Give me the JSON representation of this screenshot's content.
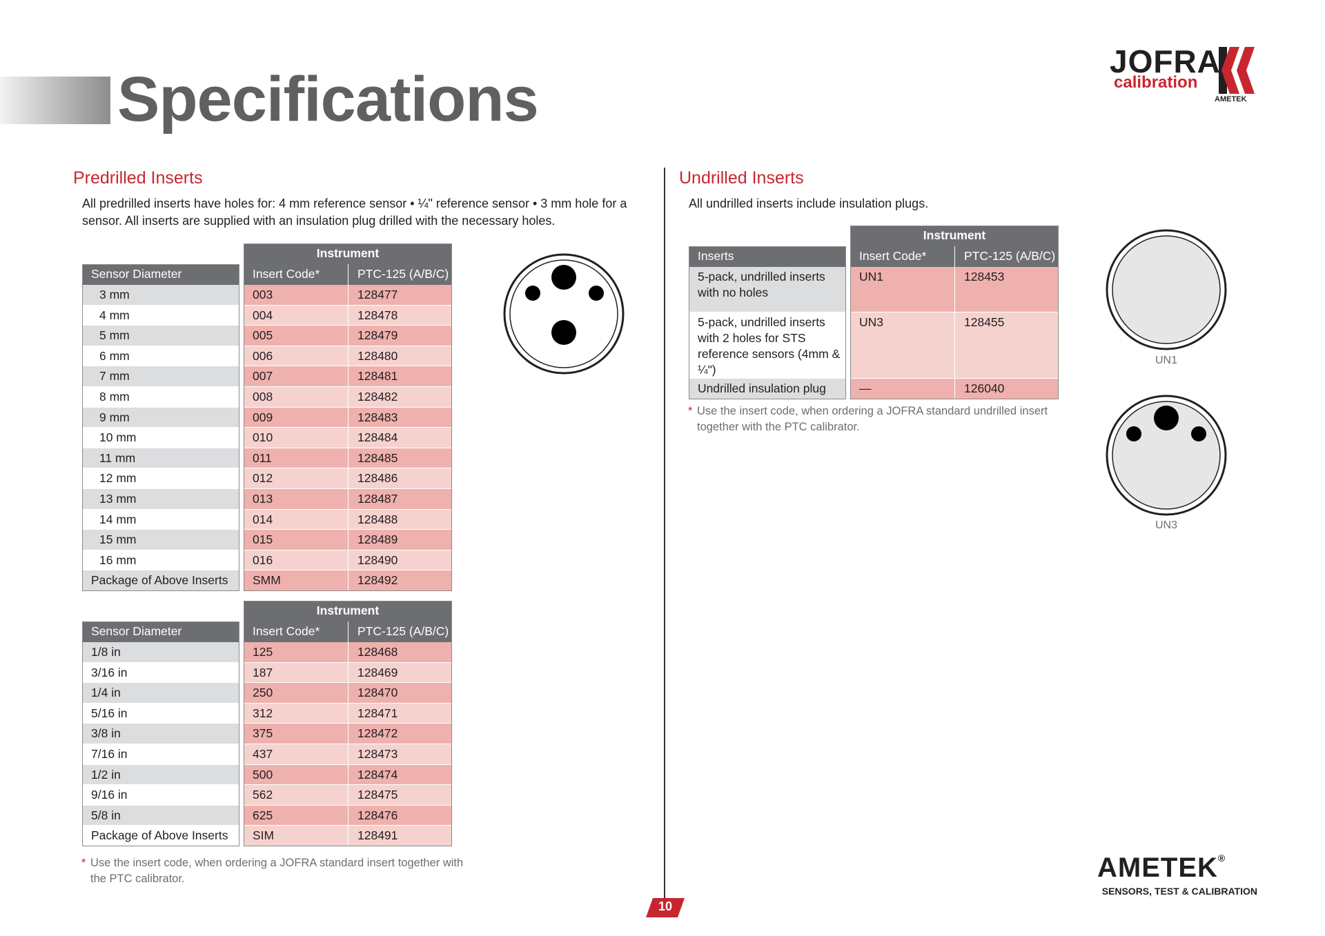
{
  "header": {
    "title": "Specifications",
    "logo": {
      "brand": "JOFRA",
      "sub": "calibration",
      "maker": "AMETEK"
    }
  },
  "predrilled": {
    "heading": "Predrilled Inserts",
    "description": "All predrilled inserts have holes for: 4 mm reference sensor • ¼\" reference sensor • 3 mm hole for a sensor. All inserts are supplied with an insulation plug drilled with the necessary holes.",
    "tables": [
      {
        "group_header": "Instrument",
        "columns": [
          "Sensor Diameter",
          "Insert Code*",
          "PTC-125 (A/B/C)"
        ],
        "rows": [
          [
            "3 mm",
            "003",
            "128477"
          ],
          [
            "4 mm",
            "004",
            "128478"
          ],
          [
            "5 mm",
            "005",
            "128479"
          ],
          [
            "6 mm",
            "006",
            "128480"
          ],
          [
            "7 mm",
            "007",
            "128481"
          ],
          [
            "8 mm",
            "008",
            "128482"
          ],
          [
            "9 mm",
            "009",
            "128483"
          ],
          [
            "10 mm",
            "010",
            "128484"
          ],
          [
            "11 mm",
            "011",
            "128485"
          ],
          [
            "12 mm",
            "012",
            "128486"
          ],
          [
            "13 mm",
            "013",
            "128487"
          ],
          [
            "14 mm",
            "014",
            "128488"
          ],
          [
            "15 mm",
            "015",
            "128489"
          ],
          [
            "16 mm",
            "016",
            "128490"
          ],
          [
            "Package of Above Inserts",
            "SMM",
            "128492"
          ]
        ]
      },
      {
        "group_header": "Instrument",
        "columns": [
          "Sensor Diameter",
          "Insert Code*",
          "PTC-125 (A/B/C)"
        ],
        "rows": [
          [
            "1/8 in",
            "125",
            "128468"
          ],
          [
            "3/16 in",
            "187",
            "128469"
          ],
          [
            "1/4 in",
            "250",
            "128470"
          ],
          [
            "5/16 in",
            "312",
            "128471"
          ],
          [
            "3/8 in",
            "375",
            "128472"
          ],
          [
            "7/16 in",
            "437",
            "128473"
          ],
          [
            "1/2 in",
            "500",
            "128474"
          ],
          [
            "9/16 in",
            "562",
            "128475"
          ],
          [
            "5/8 in",
            "625",
            "128476"
          ],
          [
            "Package of Above Inserts",
            "SIM",
            "128491"
          ]
        ]
      }
    ],
    "footnote": {
      "mark": "*",
      "text": "Use the insert code, when ordering a JOFRA standard insert together with the PTC calibrator."
    }
  },
  "undrilled": {
    "heading": "Undrilled Inserts",
    "description": "All undrilled inserts include insulation plugs.",
    "table": {
      "group_header": "Instrument",
      "columns": [
        "Inserts",
        "Insert Code*",
        "PTC-125 (A/B/C)"
      ],
      "rows": [
        [
          "5-pack, undrilled inserts with no holes",
          "UN1",
          "128453"
        ],
        [
          "5-pack, undrilled inserts with 2 holes for STS reference sensors (4mm & ¼\")",
          "UN3",
          "128455"
        ],
        [
          "Undrilled insulation plug",
          "—",
          "126040"
        ]
      ]
    },
    "footnote": {
      "mark": "*",
      "text": "Use the insert code, when ordering a JOFRA standard undrilled insert together with the PTC calibrator."
    },
    "images": [
      {
        "label": "UN1"
      },
      {
        "label": "UN3"
      }
    ]
  },
  "footer": {
    "brand": "AMETEK",
    "registered": "®",
    "tagline": "SENSORS, TEST & CALIBRATION",
    "page": "10"
  }
}
